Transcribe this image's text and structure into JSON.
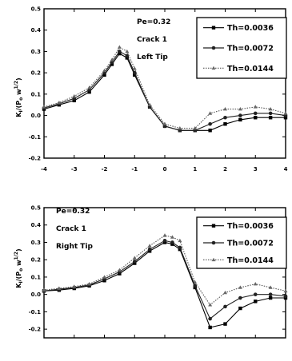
{
  "chart_data": [
    {
      "type": "line",
      "ylabel": "K_I/(P_o w^1/2)",
      "ylim": [
        -0.2,
        0.5
      ],
      "xlim": [
        -4,
        4
      ],
      "x_ticks": [
        "-4",
        "-3",
        "-2",
        "-1",
        "0",
        "1",
        "2",
        "3",
        "4"
      ],
      "y_ticks": [
        "0.5",
        "0.4",
        "0.3",
        "0.2",
        "0.1",
        "0.0",
        "-0.1",
        "-0.2"
      ],
      "annotations": [
        "Pe=0.32",
        "Crack 1",
        "Left Tip"
      ],
      "legend_position": "top-right",
      "x": [
        -4,
        -3.5,
        -3,
        -2.5,
        -2,
        -1.75,
        -1.5,
        -1.25,
        -1,
        -0.5,
        0,
        0.5,
        1,
        1.5,
        2,
        2.5,
        3,
        3.5,
        4
      ],
      "series": [
        {
          "name": "Th=0.0036",
          "marker": "square",
          "values": [
            0.03,
            0.05,
            0.07,
            0.11,
            0.19,
            0.24,
            0.29,
            0.27,
            0.19,
            0.04,
            -0.05,
            -0.07,
            -0.07,
            -0.07,
            -0.04,
            -0.02,
            -0.01,
            -0.01,
            -0.01
          ]
        },
        {
          "name": "Th=0.0072",
          "marker": "circle",
          "values": [
            0.035,
            0.055,
            0.08,
            0.12,
            0.2,
            0.25,
            0.3,
            0.28,
            0.2,
            0.04,
            -0.05,
            -0.07,
            -0.07,
            -0.04,
            -0.01,
            0.0,
            0.01,
            0.01,
            0.0
          ]
        },
        {
          "name": "Th=0.0144",
          "marker": "triangle",
          "values": [
            0.04,
            0.06,
            0.09,
            0.13,
            0.21,
            0.26,
            0.32,
            0.3,
            0.22,
            0.05,
            -0.04,
            -0.06,
            -0.06,
            0.01,
            0.03,
            0.03,
            0.04,
            0.03,
            0.01
          ]
        }
      ]
    },
    {
      "type": "line",
      "ylabel": "K_I/(P_o w^1/2)",
      "ylim": [
        -0.25,
        0.5
      ],
      "xlim": [
        -4,
        4
      ],
      "x_ticks": [],
      "y_ticks": [
        "0.5",
        "0.4",
        "0.3",
        "0.2",
        "0.1",
        "0.0",
        "-0.1",
        "-0.2"
      ],
      "annotations": [
        "Pe=0.32",
        "Crack 1",
        "Right Tip"
      ],
      "legend_position": "top-right",
      "x": [
        -4,
        -3.5,
        -3,
        -2.5,
        -2,
        -1.5,
        -1,
        -0.5,
        0,
        0.25,
        0.5,
        1,
        1.5,
        2,
        2.5,
        3,
        3.5,
        4
      ],
      "series": [
        {
          "name": "Th=0.0036",
          "marker": "square",
          "values": [
            0.02,
            0.025,
            0.035,
            0.05,
            0.08,
            0.12,
            0.18,
            0.25,
            0.3,
            0.29,
            0.26,
            0.04,
            -0.19,
            -0.17,
            -0.08,
            -0.04,
            -0.02,
            -0.02
          ]
        },
        {
          "name": "Th=0.0072",
          "marker": "circle",
          "values": [
            0.02,
            0.03,
            0.04,
            0.055,
            0.09,
            0.13,
            0.19,
            0.26,
            0.31,
            0.3,
            0.27,
            0.05,
            -0.14,
            -0.07,
            -0.02,
            0.0,
            0.0,
            -0.01
          ]
        },
        {
          "name": "Th=0.0144",
          "marker": "triangle",
          "values": [
            0.025,
            0.035,
            0.045,
            0.06,
            0.1,
            0.14,
            0.21,
            0.28,
            0.34,
            0.33,
            0.31,
            0.07,
            -0.06,
            0.01,
            0.04,
            0.06,
            0.04,
            0.02
          ]
        }
      ]
    }
  ]
}
